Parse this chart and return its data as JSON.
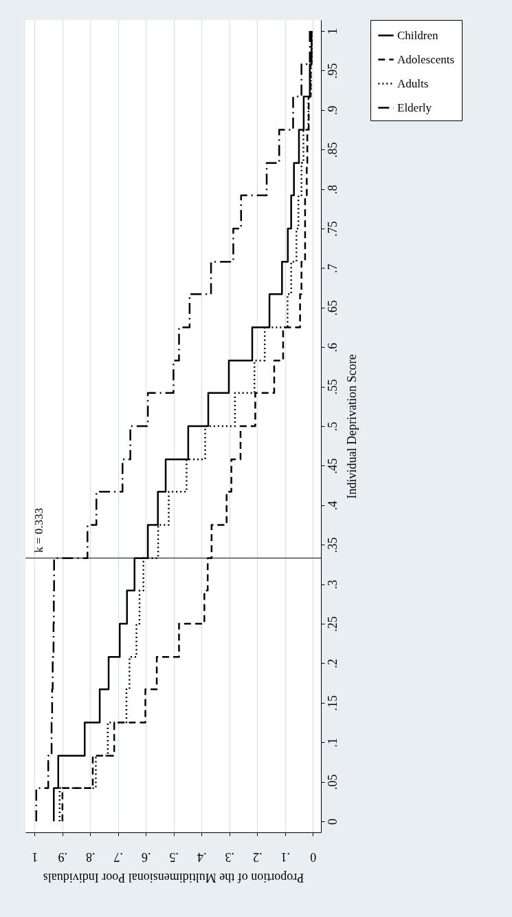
{
  "chart_data": {
    "type": "line",
    "xlabel": "Proportion of the Multidimensional Poor Individuals",
    "ylabel": "Individual Deprivation Score",
    "xlim": [
      1.033,
      -0.029
    ],
    "ylim": [
      -0.014,
      1.014
    ],
    "xticks": [
      1,
      {
        "value": 0.9,
        "label": ".9"
      },
      {
        "value": 0.8,
        "label": ".8"
      },
      {
        "value": 0.7,
        "label": ".7"
      },
      {
        "value": 0.6,
        "label": ".6"
      },
      {
        "value": 0.5,
        "label": ".5"
      },
      {
        "value": 0.4,
        "label": ".4"
      },
      {
        "value": 0.3,
        "label": ".3"
      },
      {
        "value": 0.2,
        "label": ".2"
      },
      {
        "value": 0.1,
        "label": ".1"
      },
      0
    ],
    "yticks": [
      0,
      {
        "value": 0.05,
        "label": ".05"
      },
      {
        "value": 0.1,
        "label": ".1"
      },
      {
        "value": 0.15,
        "label": ".15"
      },
      {
        "value": 0.2,
        "label": ".2"
      },
      {
        "value": 0.25,
        "label": ".25"
      },
      {
        "value": 0.3,
        "label": ".3"
      },
      {
        "value": 0.35,
        "label": ".35"
      },
      {
        "value": 0.4,
        "label": ".4"
      },
      {
        "value": 0.45,
        "label": ".45"
      },
      {
        "value": 0.5,
        "label": ".5"
      },
      {
        "value": 0.55,
        "label": ".55"
      },
      {
        "value": 0.6,
        "label": ".6"
      },
      {
        "value": 0.65,
        "label": ".65"
      },
      {
        "value": 0.7,
        "label": ".7"
      },
      {
        "value": 0.75,
        "label": ".75"
      },
      {
        "value": 0.8,
        "label": ".8"
      },
      {
        "value": 0.85,
        "label": ".85"
      },
      {
        "value": 0.9,
        "label": ".9"
      },
      {
        "value": 0.95,
        "label": ".95"
      },
      1
    ],
    "grid": "x",
    "legend": "right",
    "ref_lines": [
      {
        "axis": "y",
        "value": 0.333,
        "label": "k = 0.333"
      }
    ],
    "series": [
      {
        "name": "Children",
        "color": "#000000",
        "line_style": "solid",
        "x": [
          0.931,
          0.931,
          0.915,
          0.915,
          0.82,
          0.82,
          0.766,
          0.766,
          0.734,
          0.734,
          0.694,
          0.694,
          0.668,
          0.668,
          0.641,
          0.641,
          0.593,
          0.593,
          0.557,
          0.557,
          0.529,
          0.529,
          0.448,
          0.448,
          0.376,
          0.376,
          0.302,
          0.302,
          0.218,
          0.218,
          0.156,
          0.156,
          0.111,
          0.111,
          0.09,
          0.09,
          0.078,
          0.078,
          0.068,
          0.068,
          0.05,
          0.05,
          0.033,
          0.033,
          0.011,
          0.011,
          0.005,
          0.005
        ],
        "values": [
          0,
          0.042,
          0.042,
          0.083,
          0.083,
          0.125,
          0.125,
          0.167,
          0.167,
          0.208,
          0.208,
          0.25,
          0.25,
          0.292,
          0.292,
          0.333,
          0.333,
          0.375,
          0.375,
          0.417,
          0.417,
          0.458,
          0.458,
          0.5,
          0.5,
          0.542,
          0.542,
          0.583,
          0.583,
          0.625,
          0.625,
          0.667,
          0.667,
          0.708,
          0.708,
          0.75,
          0.75,
          0.792,
          0.792,
          0.833,
          0.833,
          0.875,
          0.875,
          0.917,
          0.917,
          0.958,
          0.958,
          1
        ]
      },
      {
        "name": "Adolescents",
        "color": "#000000",
        "line_style": "dashed",
        "x": [
          0.9,
          0.9,
          0.791,
          0.791,
          0.714,
          0.714,
          0.602,
          0.602,
          0.561,
          0.561,
          0.481,
          0.481,
          0.39,
          0.39,
          0.378,
          0.378,
          0.364,
          0.364,
          0.31,
          0.31,
          0.293,
          0.293,
          0.26,
          0.26,
          0.207,
          0.207,
          0.139,
          0.139,
          0.107,
          0.107,
          0.046,
          0.046,
          0.041,
          0.041,
          0.028,
          0.028,
          0.028,
          0.028,
          0.022,
          0.022,
          0.02,
          0.02,
          0.015,
          0.015,
          0.008,
          0.008,
          0.005,
          0.005
        ],
        "values": [
          0,
          0.042,
          0.042,
          0.083,
          0.083,
          0.125,
          0.125,
          0.167,
          0.167,
          0.208,
          0.208,
          0.25,
          0.25,
          0.292,
          0.292,
          0.333,
          0.333,
          0.375,
          0.375,
          0.417,
          0.417,
          0.458,
          0.458,
          0.5,
          0.5,
          0.542,
          0.542,
          0.583,
          0.583,
          0.625,
          0.625,
          0.667,
          0.667,
          0.708,
          0.708,
          0.75,
          0.75,
          0.792,
          0.792,
          0.833,
          0.833,
          0.875,
          0.875,
          0.917,
          0.917,
          0.958,
          0.958,
          1
        ]
      },
      {
        "name": "Adults",
        "color": "#000000",
        "line_style": "dotted",
        "x": [
          0.91,
          0.91,
          0.78,
          0.78,
          0.737,
          0.737,
          0.67,
          0.67,
          0.659,
          0.659,
          0.634,
          0.634,
          0.623,
          0.623,
          0.609,
          0.609,
          0.556,
          0.556,
          0.518,
          0.518,
          0.454,
          0.454,
          0.387,
          0.387,
          0.28,
          0.28,
          0.21,
          0.21,
          0.173,
          0.173,
          0.091,
          0.091,
          0.078,
          0.078,
          0.059,
          0.059,
          0.052,
          0.052,
          0.041,
          0.041,
          0.034,
          0.034,
          0.016,
          0.016,
          0.007,
          0.007,
          0.004,
          0.004
        ],
        "values": [
          0,
          0.042,
          0.042,
          0.083,
          0.083,
          0.125,
          0.125,
          0.167,
          0.167,
          0.208,
          0.208,
          0.25,
          0.25,
          0.292,
          0.292,
          0.333,
          0.333,
          0.375,
          0.375,
          0.417,
          0.417,
          0.458,
          0.458,
          0.5,
          0.5,
          0.542,
          0.542,
          0.583,
          0.583,
          0.625,
          0.625,
          0.667,
          0.667,
          0.708,
          0.708,
          0.75,
          0.75,
          0.792,
          0.792,
          0.833,
          0.833,
          0.875,
          0.875,
          0.917,
          0.917,
          0.958,
          0.958,
          1
        ]
      },
      {
        "name": "Elderly",
        "color": "#000000",
        "line_style": "dashdot",
        "x": [
          0.994,
          0.994,
          0.951,
          0.951,
          0.939,
          0.939,
          0.937,
          0.937,
          0.935,
          0.935,
          0.932,
          0.932,
          0.931,
          0.931,
          0.93,
          0.93,
          0.81,
          0.81,
          0.778,
          0.778,
          0.684,
          0.684,
          0.656,
          0.656,
          0.593,
          0.593,
          0.501,
          0.501,
          0.481,
          0.481,
          0.443,
          0.443,
          0.366,
          0.366,
          0.286,
          0.286,
          0.258,
          0.258,
          0.166,
          0.166,
          0.121,
          0.121,
          0.071,
          0.071,
          0.041,
          0.041,
          0.011,
          0.011
        ],
        "values": [
          0,
          0.042,
          0.042,
          0.083,
          0.083,
          0.125,
          0.125,
          0.167,
          0.167,
          0.208,
          0.208,
          0.25,
          0.25,
          0.292,
          0.292,
          0.333,
          0.333,
          0.375,
          0.375,
          0.417,
          0.417,
          0.458,
          0.458,
          0.5,
          0.5,
          0.542,
          0.542,
          0.583,
          0.583,
          0.625,
          0.625,
          0.667,
          0.667,
          0.708,
          0.708,
          0.75,
          0.75,
          0.792,
          0.792,
          0.833,
          0.833,
          0.875,
          0.875,
          0.917,
          0.917,
          0.958,
          0.958,
          1
        ]
      }
    ]
  }
}
